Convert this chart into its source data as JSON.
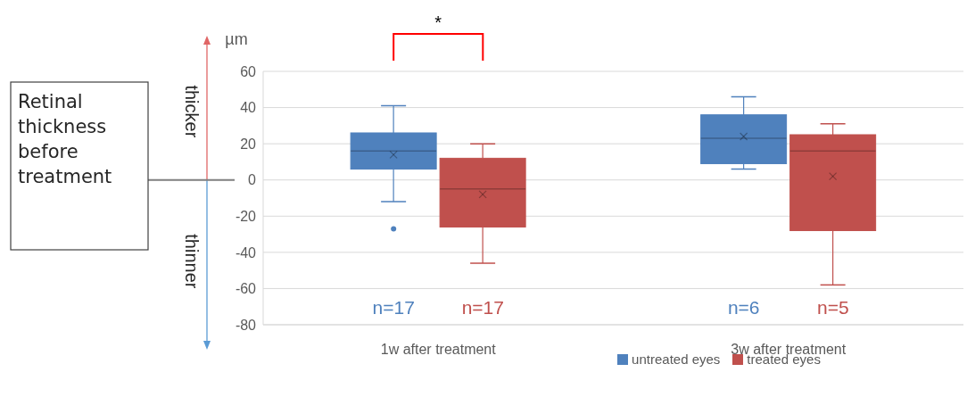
{
  "chart_data": {
    "type": "box",
    "ylabel": "µm",
    "categories": [
      "1w after treatment",
      "3w after treatment"
    ],
    "series": [
      {
        "name": "untreated eyes",
        "color": "#4f81bd",
        "boxes": [
          {
            "low": -12,
            "q1": 6,
            "median": 16,
            "q3": 26,
            "high": 41,
            "mean": 14,
            "outliers": [
              -27
            ]
          },
          {
            "low": 6,
            "q1": 9,
            "median": 23,
            "q3": 36,
            "high": 46,
            "mean": 24
          }
        ]
      },
      {
        "name": "treated eyes",
        "color": "#c0504d",
        "boxes": [
          {
            "low": -46,
            "q1": -26,
            "median": -5,
            "q3": 12,
            "high": 20,
            "mean": -8
          },
          {
            "low": -58,
            "q1": -28,
            "median": 16,
            "q3": 25,
            "high": 31,
            "mean": 2
          }
        ]
      }
    ],
    "ylim": [
      -80,
      60
    ],
    "yticks": [
      -80,
      -60,
      -40,
      -20,
      0,
      20,
      40,
      60
    ],
    "grid": "y",
    "legend": "bottom",
    "annotations": [
      "*",
      "thicker",
      "thinner",
      "Retinal thickness before treatment",
      "n=17",
      "n=17",
      "n=6",
      "n=5"
    ]
  }
}
